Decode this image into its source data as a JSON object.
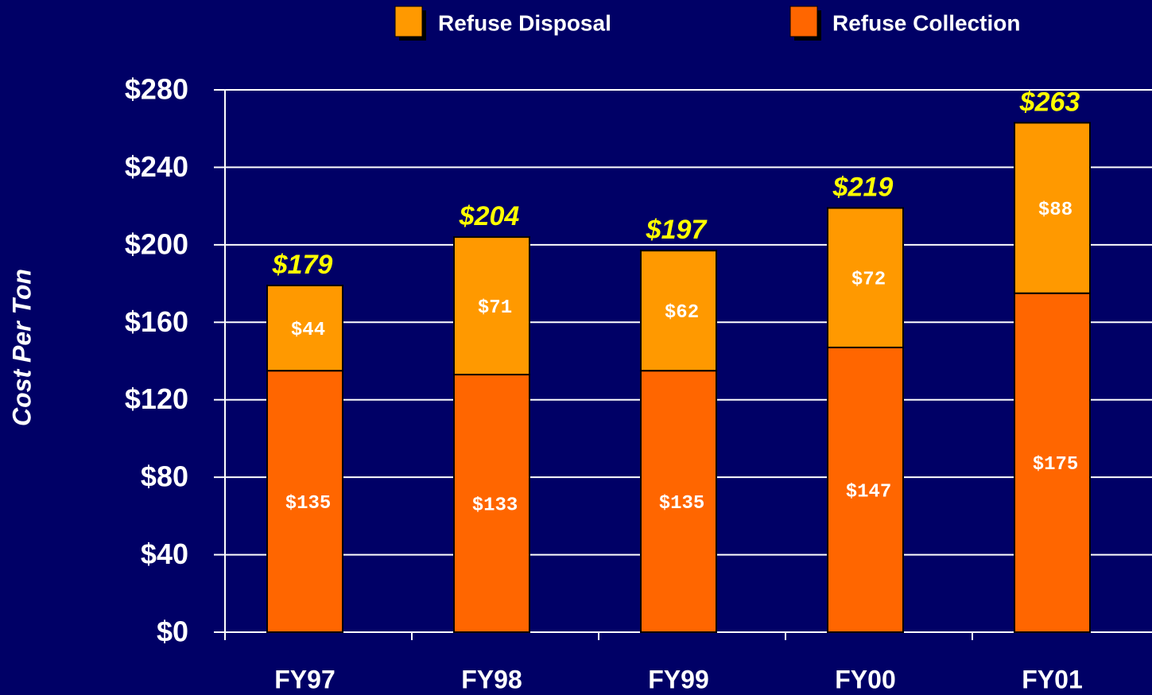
{
  "chart_data": {
    "type": "stacked_bar",
    "y_axis_label": "Cost Per Ton",
    "categories": [
      "FY97",
      "FY98",
      "FY99",
      "FY00",
      "FY01"
    ],
    "series": [
      {
        "name": "Refuse Collection",
        "color": "#ff6600",
        "values": [
          135,
          133,
          135,
          147,
          175
        ],
        "value_labels": [
          "$135",
          "$133",
          "$135",
          "$147",
          "$175"
        ]
      },
      {
        "name": "Refuse Disposal",
        "color": "#ff9900",
        "values": [
          44,
          71,
          62,
          72,
          88
        ],
        "value_labels": [
          "$44",
          "$71",
          "$62",
          "$72",
          "$88"
        ]
      }
    ],
    "totals": [
      179,
      204,
      197,
      219,
      263
    ],
    "total_labels": [
      "$179",
      "$204",
      "$197",
      "$219",
      "$263"
    ],
    "ylim": [
      0,
      280
    ],
    "yticks": [
      {
        "value": 0,
        "label": "$0"
      },
      {
        "value": 40,
        "label": "$40"
      },
      {
        "value": 80,
        "label": "$80"
      },
      {
        "value": 120,
        "label": "$120"
      },
      {
        "value": 160,
        "label": "$160"
      },
      {
        "value": 200,
        "label": "$200"
      },
      {
        "value": 240,
        "label": "$240"
      },
      {
        "value": 280,
        "label": "$280"
      }
    ],
    "grid": true
  }
}
